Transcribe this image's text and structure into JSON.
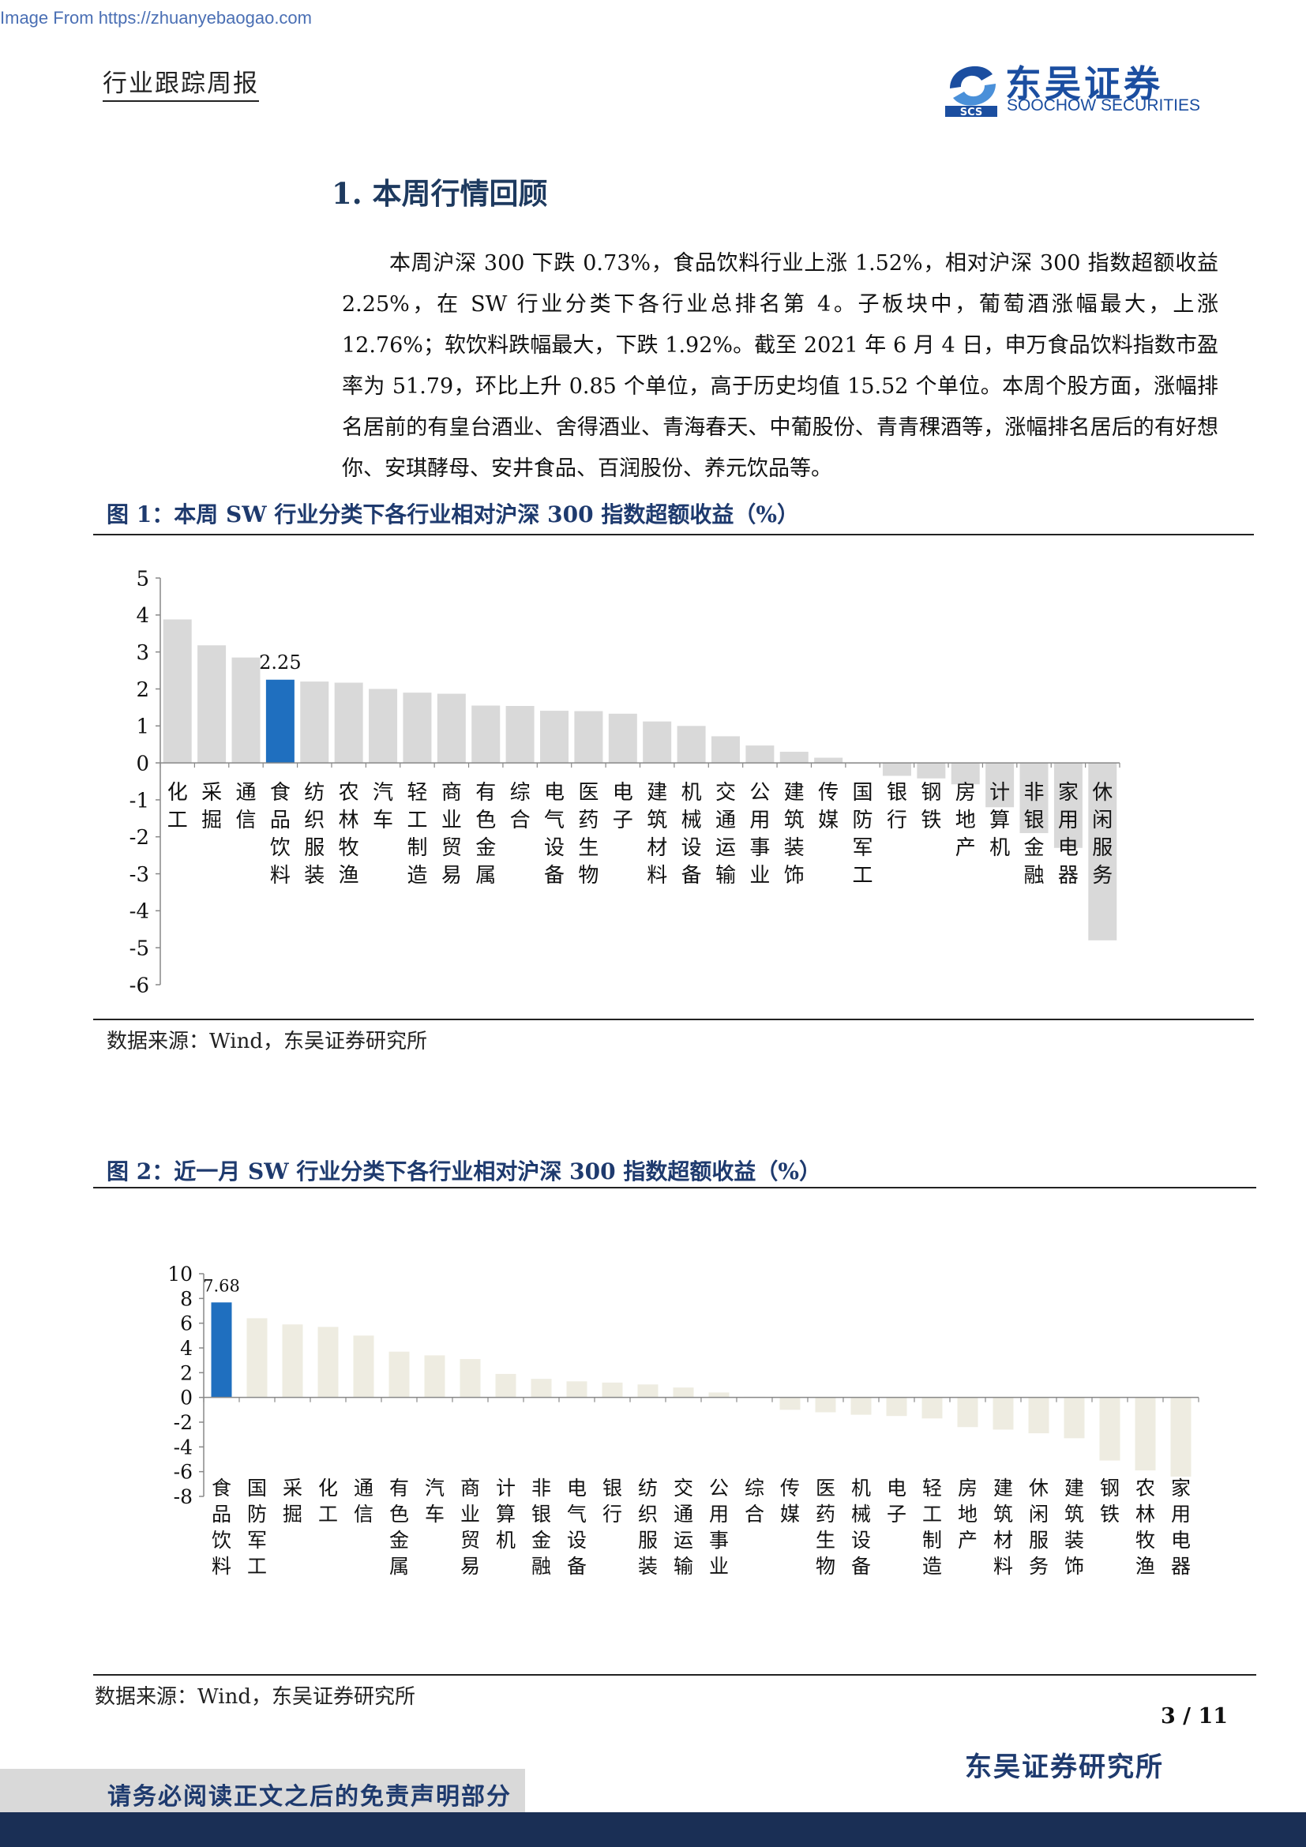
{
  "watermark": "Image From https://zhuanyebaogao.com",
  "header": {
    "report_type": "行业跟踪周报",
    "logo_cn": "东吴证券",
    "logo_en": "SOOCHOW SECURITIES",
    "logo_mark": "SCS"
  },
  "section": {
    "title": "1.  本周行情回顾",
    "body": "本周沪深 300 下跌 0.73%，食品饮料行业上涨 1.52%，相对沪深 300 指数超额收益 2.25%，在 SW 行业分类下各行业总排名第 4。子板块中，葡萄酒涨幅最大，上涨 12.76%；软饮料跌幅最大，下跌 1.92%。截至 2021 年 6 月 4 日，申万食品饮料指数市盈率为 51.79，环比上升 0.85 个单位，高于历史均值 15.52 个单位。本周个股方面，涨幅排名居前的有皇台酒业、舍得酒业、青海春天、中葡股份、青青稞酒等，涨幅排名居后的有好想你、安琪酵母、安井食品、百润股份、养元饮品等。"
  },
  "figure1": {
    "title": "图 1：本周 SW 行业分类下各行业相对沪深 300 指数超额收益（%）",
    "source": "数据来源：Wind，东吴证券研究所"
  },
  "figure2": {
    "title": "图 2：近一月 SW 行业分类下各行业相对沪深 300 指数超额收益（%）",
    "source": "数据来源：Wind，东吴证券研究所"
  },
  "chart_data": [
    {
      "type": "bar",
      "title": "图 1：本周 SW 行业分类下各行业相对沪深 300 指数超额收益（%）",
      "categories": [
        "化工",
        "采掘",
        "通信",
        "食品饮料",
        "纺织服装",
        "农林牧渔",
        "汽车",
        "轻工制造",
        "商业贸易",
        "有色金属",
        "综合",
        "电气设备",
        "医药生物",
        "电子",
        "建筑材料",
        "机械设备",
        "交通运输",
        "公用事业",
        "建筑装饰",
        "传媒",
        "国防军工",
        "银行",
        "钢铁",
        "房地产",
        "计算机",
        "非银金融",
        "家用电器",
        "休闲服务"
      ],
      "values": [
        3.88,
        3.18,
        2.85,
        2.25,
        2.2,
        2.17,
        2.0,
        1.9,
        1.87,
        1.55,
        1.54,
        1.41,
        1.4,
        1.33,
        1.12,
        1.0,
        0.72,
        0.47,
        0.3,
        0.14,
        -0.02,
        -0.35,
        -0.42,
        -0.58,
        -1.2,
        -1.9,
        -2.3,
        -4.8
      ],
      "highlight": "食品饮料",
      "data_labels": [
        {
          "category": "食品饮料",
          "text": "2.25"
        }
      ],
      "yticks": [
        5,
        4,
        3,
        2,
        1,
        0,
        -1,
        -2,
        -3,
        -4,
        -5,
        -6
      ],
      "ylim": [
        -6,
        5
      ],
      "colors": {
        "bar": "#d9d9d9",
        "highlight": "#1f6fbf"
      }
    },
    {
      "type": "bar",
      "title": "图 2：近一月 SW 行业分类下各行业相对沪深 300 指数超额收益（%）",
      "categories": [
        "食品饮料",
        "国防军工",
        "采掘",
        "化工",
        "通信",
        "有色金属",
        "汽车",
        "商业贸易",
        "计算机",
        "非银金融",
        "电气设备",
        "银行",
        "纺织服装",
        "交通运输",
        "公用事业",
        "综合",
        "传媒",
        "医药生物",
        "机械设备",
        "电子",
        "轻工制造",
        "房地产",
        "建筑材料",
        "休闲服务",
        "建筑装饰",
        "钢铁",
        "农林牧渔",
        "家用电器"
      ],
      "values": [
        7.68,
        6.4,
        5.9,
        5.7,
        5.0,
        3.7,
        3.4,
        3.1,
        1.9,
        1.5,
        1.3,
        1.2,
        1.05,
        0.8,
        0.4,
        0.05,
        -1.0,
        -1.2,
        -1.4,
        -1.5,
        -1.7,
        -2.4,
        -2.6,
        -2.9,
        -3.3,
        -5.1,
        -5.9,
        -6.4
      ],
      "highlight": "食品饮料",
      "data_labels": [
        {
          "category": "食品饮料",
          "text": "7.68"
        }
      ],
      "yticks": [
        10,
        8,
        6,
        4,
        2,
        0,
        -2,
        -4,
        -6,
        -8
      ],
      "ylim": [
        -8,
        10
      ],
      "colors": {
        "bar": "#eeece1",
        "highlight": "#1f6fbf"
      }
    }
  ],
  "footer": {
    "page": "3 / 11",
    "org": "东吴证券研究所",
    "disclaimer": "请务必阅读正文之后的免责声明部分"
  }
}
